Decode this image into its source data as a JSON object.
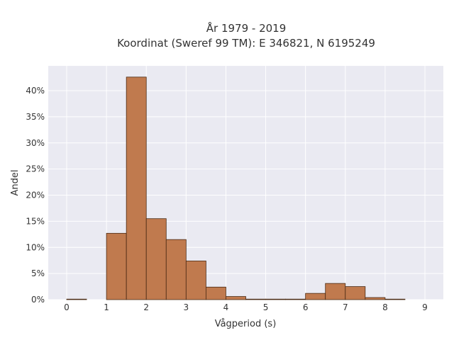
{
  "chart_data": {
    "type": "bar",
    "title": "År 1979 - 2019",
    "subtitle": "Koordinat (Sweref 99 TM): E 346821, N 6195249",
    "xlabel": "Vågperiod (s)",
    "ylabel": "Andel",
    "x_ticks": [
      "0",
      "1",
      "2",
      "3",
      "4",
      "5",
      "6",
      "7",
      "8",
      "9"
    ],
    "y_ticks": [
      "0%",
      "5%",
      "10%",
      "15%",
      "20%",
      "25%",
      "30%",
      "35%",
      "40%"
    ],
    "bin_width": 0.5,
    "bins": [
      {
        "start": 0.0,
        "value": 0.1
      },
      {
        "start": 0.5,
        "value": 0.0
      },
      {
        "start": 1.0,
        "value": 12.7
      },
      {
        "start": 1.5,
        "value": 42.6
      },
      {
        "start": 2.0,
        "value": 15.5
      },
      {
        "start": 2.5,
        "value": 11.5
      },
      {
        "start": 3.0,
        "value": 7.4
      },
      {
        "start": 3.5,
        "value": 2.4
      },
      {
        "start": 4.0,
        "value": 0.6
      },
      {
        "start": 4.5,
        "value": 0.1
      },
      {
        "start": 5.0,
        "value": 0.1
      },
      {
        "start": 5.5,
        "value": 0.1
      },
      {
        "start": 6.0,
        "value": 1.2
      },
      {
        "start": 6.5,
        "value": 3.1
      },
      {
        "start": 7.0,
        "value": 2.5
      },
      {
        "start": 7.5,
        "value": 0.4
      },
      {
        "start": 8.0,
        "value": 0.1
      }
    ],
    "xlim": [
      -0.5,
      9.5
    ],
    "ylim": [
      0,
      44
    ],
    "grid": true,
    "colors": {
      "bar": "#c07a4e",
      "bar_edge": "#4a2a14",
      "background": "#eaeaf2",
      "grid": "#ffffff"
    }
  }
}
